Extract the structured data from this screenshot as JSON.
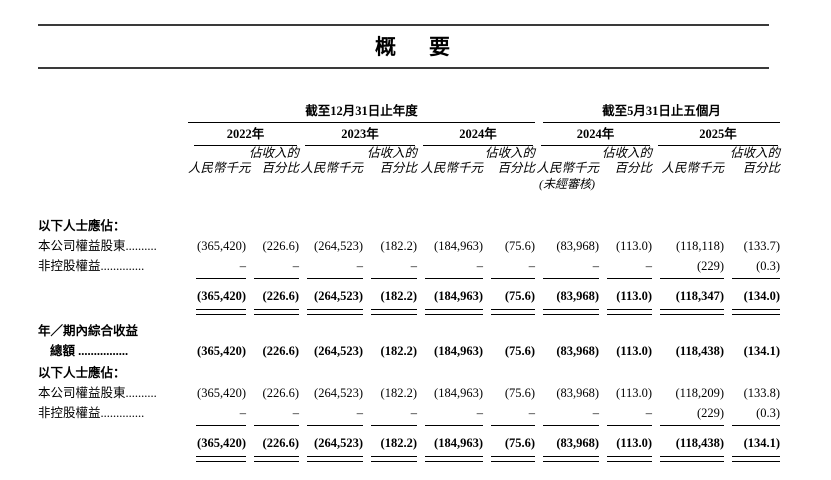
{
  "page": {
    "title": "概　要"
  },
  "table": {
    "col_groups": [
      {
        "label": "截至12月31日止年度",
        "years": [
          {
            "label": "2022年"
          },
          {
            "label": "2023年"
          },
          {
            "label": "2024年"
          }
        ]
      },
      {
        "label": "截至5月31日止五個月",
        "years": [
          {
            "label": "2024年",
            "note": "(未經審核)"
          },
          {
            "label": "2025年"
          }
        ]
      }
    ],
    "sub_headers": {
      "amount": "人民幣千元",
      "percent_line1": "佔收入的",
      "percent_line2": "百分比"
    },
    "rows": [
      {
        "type": "section",
        "label": "以下人士應佔：",
        "bold": true
      },
      {
        "type": "data",
        "label": "本公司權益股東..........",
        "values": [
          "(365,420)",
          "(226.6)",
          "(264,523)",
          "(182.2)",
          "(184,963)",
          "(75.6)",
          "(83,968)",
          "(113.0)",
          "(118,118)",
          "(133.7)"
        ]
      },
      {
        "type": "data",
        "label": "非控股權益..............",
        "values": [
          "–",
          "–",
          "–",
          "–",
          "–",
          "–",
          "–",
          "–",
          "(229)",
          "(0.3)"
        ],
        "rule_below": "single"
      },
      {
        "type": "total",
        "label": "",
        "bold": true,
        "values": [
          "(365,420)",
          "(226.6)",
          "(264,523)",
          "(182.2)",
          "(184,963)",
          "(75.6)",
          "(83,968)",
          "(113.0)",
          "(118,347)",
          "(134.0)"
        ],
        "rule_below": "double"
      },
      {
        "type": "section",
        "label": "年／期內綜合收益",
        "bold": true
      },
      {
        "type": "data",
        "label": "總額 ................",
        "bold": true,
        "indent": true,
        "values": [
          "(365,420)",
          "(226.6)",
          "(264,523)",
          "(182.2)",
          "(184,963)",
          "(75.6)",
          "(83,968)",
          "(113.0)",
          "(118,438)",
          "(134.1)"
        ]
      },
      {
        "type": "section",
        "label": "以下人士應佔：",
        "bold": true
      },
      {
        "type": "data",
        "label": "本公司權益股東..........",
        "values": [
          "(365,420)",
          "(226.6)",
          "(264,523)",
          "(182.2)",
          "(184,963)",
          "(75.6)",
          "(83,968)",
          "(113.0)",
          "(118,209)",
          "(133.8)"
        ]
      },
      {
        "type": "data",
        "label": "非控股權益..............",
        "values": [
          "–",
          "–",
          "–",
          "–",
          "–",
          "–",
          "–",
          "–",
          "(229)",
          "(0.3)"
        ],
        "rule_below": "single"
      },
      {
        "type": "total",
        "label": "",
        "bold": true,
        "values": [
          "(365,420)",
          "(226.6)",
          "(264,523)",
          "(182.2)",
          "(184,963)",
          "(75.6)",
          "(83,968)",
          "(113.0)",
          "(118,438)",
          "(134.1)"
        ],
        "rule_below": "double"
      }
    ]
  }
}
